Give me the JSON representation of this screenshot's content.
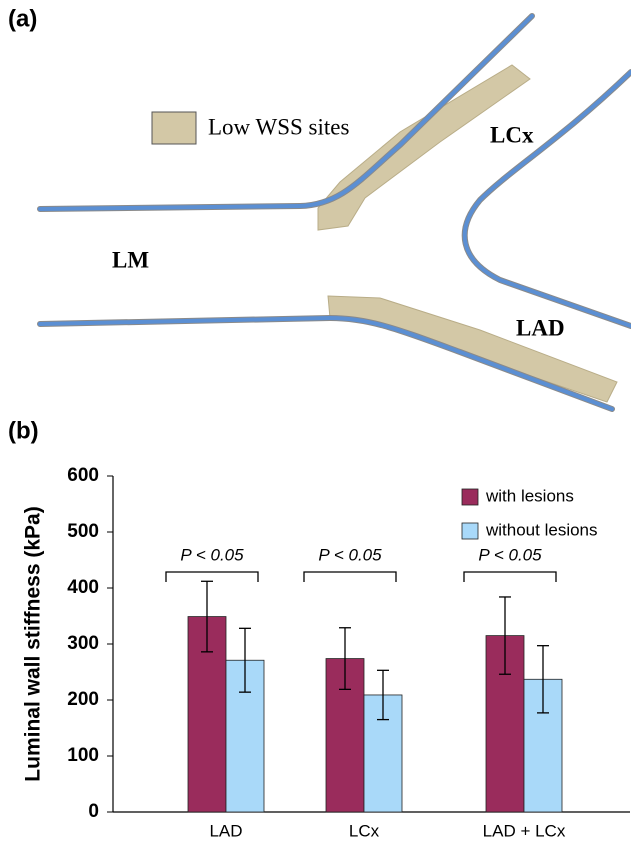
{
  "panel_a": {
    "panel_label": "(a)",
    "legend": "Low WSS sites",
    "labels": [
      "LM",
      "LCx",
      "LAD"
    ]
  },
  "chart_data": {
    "type": "bar",
    "panel_label": "(b)",
    "ylabel": "Luminal wall stiffness (kPa)",
    "categories": [
      "LAD",
      "LCx",
      "LAD + LCx"
    ],
    "series": [
      {
        "name": "with lesions",
        "color": "#9a2c5c",
        "values": [
          349,
          274,
          315
        ],
        "errors": [
          63,
          55,
          69
        ]
      },
      {
        "name": "without lesions",
        "color": "#a9d9f9",
        "values": [
          271,
          209,
          237
        ],
        "errors": [
          57,
          44,
          60
        ]
      }
    ],
    "annotations": [
      "P < 0.05",
      "P < 0.05",
      "P < 0.05"
    ],
    "ylim": [
      0,
      600
    ],
    "yticks": [
      0,
      100,
      200,
      300,
      400,
      500,
      600
    ],
    "grid": false,
    "legend": "top-right"
  }
}
